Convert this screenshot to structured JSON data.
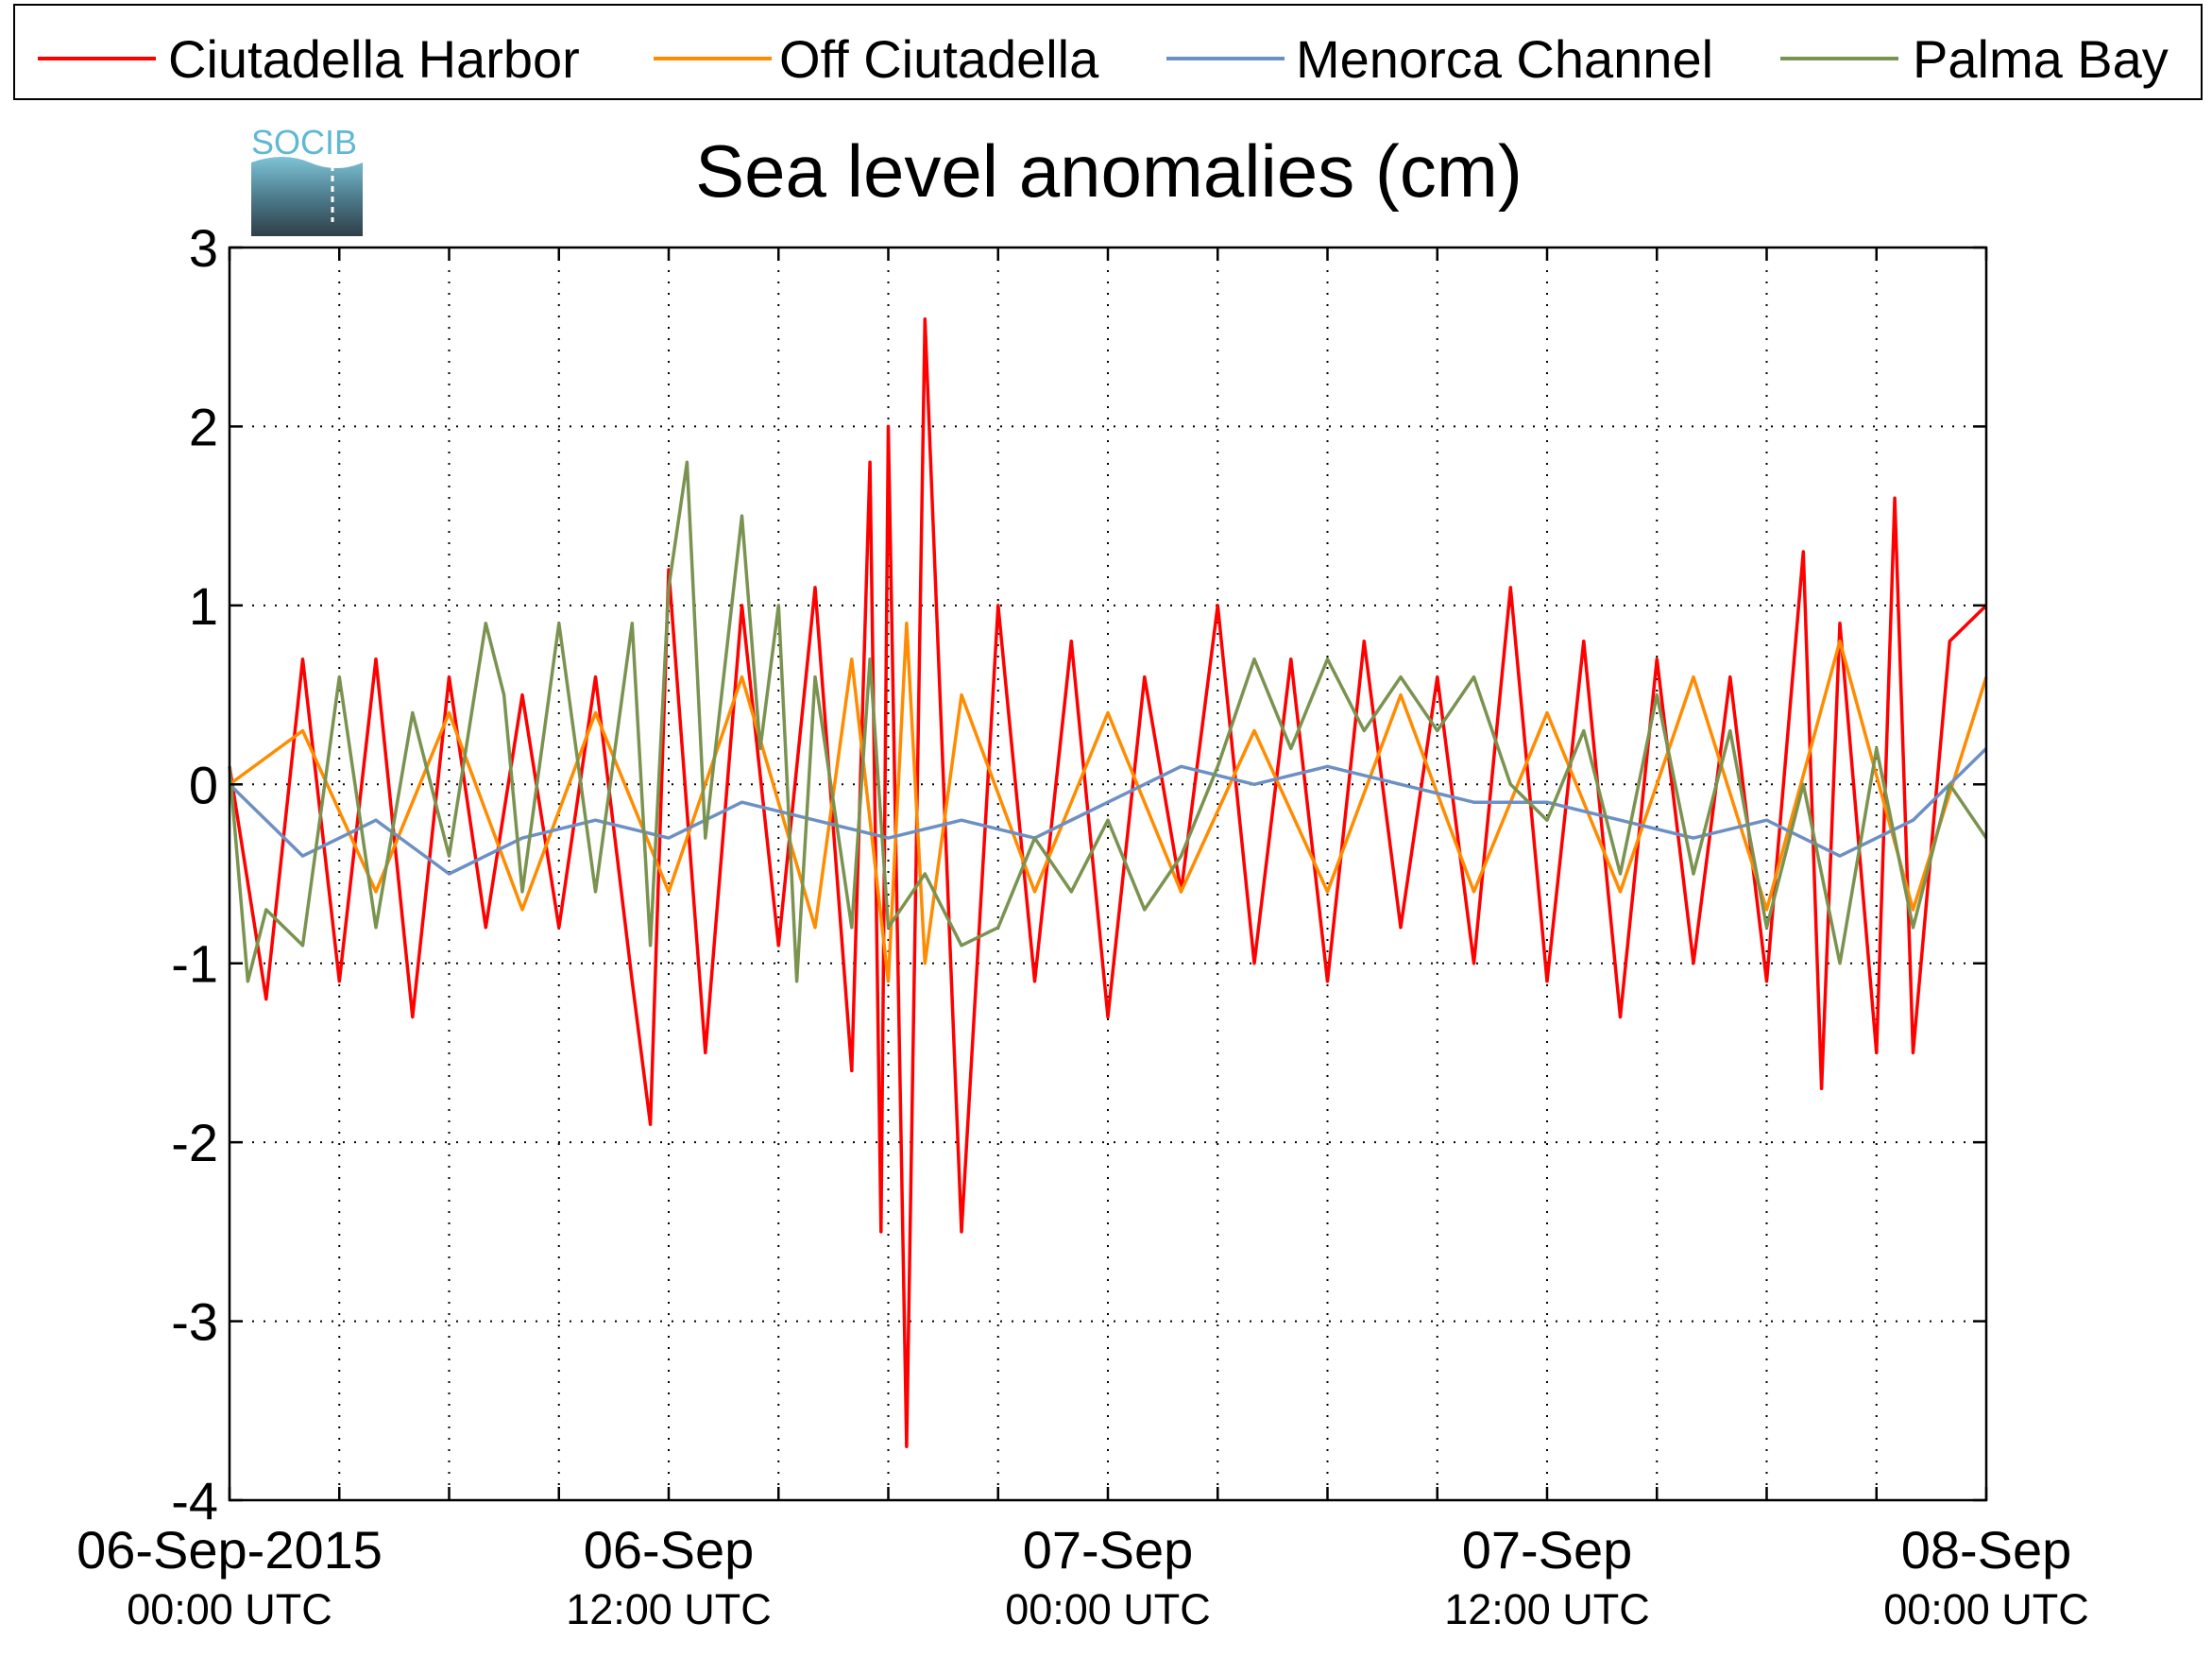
{
  "chart_data": {
    "type": "line",
    "title": "Sea level anomalies (cm)",
    "xlabel": "",
    "ylabel": "",
    "ylim": [
      -4,
      3
    ],
    "y_ticks": [
      3,
      2,
      1,
      0,
      -1,
      -2,
      -3,
      -4
    ],
    "y_tick_labels": [
      "3",
      "2",
      "1",
      "0",
      "-1",
      "-2",
      "-3",
      "-4"
    ],
    "x_range_hours": [
      0,
      48
    ],
    "x_ticks": [
      {
        "hours": 0,
        "date": "06-Sep-2015",
        "time": "00:00 UTC"
      },
      {
        "hours": 12,
        "date": "06-Sep",
        "time": "12:00 UTC"
      },
      {
        "hours": 24,
        "date": "07-Sep",
        "time": "00:00 UTC"
      },
      {
        "hours": 36,
        "date": "07-Sep",
        "time": "12:00 UTC"
      },
      {
        "hours": 48,
        "date": "08-Sep",
        "time": "00:00 UTC"
      }
    ],
    "x_minor_tick_hours": [
      3,
      6,
      9,
      15,
      18,
      21,
      27,
      30,
      33,
      39,
      42,
      45
    ],
    "grid": true,
    "legend_position": "top",
    "series": [
      {
        "name": "Ciutadella Harbor",
        "color": "#ff0000",
        "x": [
          0,
          1,
          2,
          3,
          4,
          5,
          6,
          7,
          8,
          9,
          10,
          11,
          11.5,
          12,
          13,
          14,
          15,
          16,
          17,
          17.5,
          17.8,
          18,
          18.5,
          19,
          20,
          21,
          22,
          23,
          24,
          25,
          26,
          27,
          28,
          29,
          30,
          31,
          32,
          33,
          34,
          35,
          36,
          37,
          38,
          39,
          40,
          41,
          42,
          43,
          43.5,
          44,
          45,
          45.5,
          46,
          47,
          48
        ],
        "y": [
          0.1,
          -1.2,
          0.7,
          -1.1,
          0.7,
          -1.3,
          0.6,
          -0.8,
          0.5,
          -0.8,
          0.6,
          -1.1,
          -1.9,
          1.2,
          -1.5,
          1.0,
          -0.9,
          1.1,
          -1.6,
          1.8,
          -2.5,
          2.0,
          -3.7,
          2.6,
          -2.5,
          1.0,
          -1.1,
          0.8,
          -1.3,
          0.6,
          -0.6,
          1.0,
          -1.0,
          0.7,
          -1.1,
          0.8,
          -0.8,
          0.6,
          -1.0,
          1.1,
          -1.1,
          0.8,
          -1.3,
          0.7,
          -1.0,
          0.6,
          -1.1,
          1.3,
          -1.7,
          0.9,
          -1.5,
          1.6,
          -1.5,
          0.8,
          1.0
        ]
      },
      {
        "name": "Off Ciutadella",
        "color": "#ff8c00",
        "x": [
          0,
          2,
          4,
          6,
          8,
          10,
          12,
          14,
          16,
          17,
          18,
          18.5,
          19,
          20,
          22,
          24,
          26,
          28,
          30,
          32,
          34,
          36,
          38,
          40,
          42,
          44,
          46,
          48
        ],
        "y": [
          0.0,
          0.3,
          -0.6,
          0.4,
          -0.7,
          0.4,
          -0.6,
          0.6,
          -0.8,
          0.7,
          -1.1,
          0.9,
          -1.0,
          0.5,
          -0.6,
          0.4,
          -0.6,
          0.3,
          -0.6,
          0.5,
          -0.6,
          0.4,
          -0.6,
          0.6,
          -0.7,
          0.8,
          -0.7,
          0.6
        ]
      },
      {
        "name": "Menorca Channel",
        "color": "#6d90c4",
        "x": [
          0,
          2,
          4,
          6,
          8,
          10,
          12,
          14,
          16,
          18,
          20,
          22,
          24,
          26,
          28,
          30,
          32,
          34,
          36,
          38,
          40,
          42,
          44,
          46,
          48
        ],
        "y": [
          0.0,
          -0.4,
          -0.2,
          -0.5,
          -0.3,
          -0.2,
          -0.3,
          -0.1,
          -0.2,
          -0.3,
          -0.2,
          -0.3,
          -0.1,
          0.1,
          0.0,
          0.1,
          0.0,
          -0.1,
          -0.1,
          -0.2,
          -0.3,
          -0.2,
          -0.4,
          -0.2,
          0.2
        ]
      },
      {
        "name": "Palma Bay",
        "color": "#7a9350",
        "x": [
          0,
          0.5,
          1,
          2,
          3,
          4,
          5,
          6,
          7,
          7.5,
          8,
          9,
          10,
          11,
          11.5,
          12,
          12.5,
          13,
          14,
          14.5,
          15,
          15.5,
          16,
          17,
          17.5,
          18,
          19,
          20,
          21,
          22,
          23,
          24,
          25,
          26,
          27,
          28,
          29,
          30,
          31,
          32,
          33,
          34,
          35,
          36,
          37,
          38,
          39,
          40,
          41,
          42,
          43,
          44,
          45,
          46,
          47,
          48
        ],
        "y": [
          0.1,
          -1.1,
          -0.7,
          -0.9,
          0.6,
          -0.8,
          0.4,
          -0.4,
          0.9,
          0.5,
          -0.6,
          0.9,
          -0.6,
          0.9,
          -0.9,
          1.1,
          1.8,
          -0.3,
          1.5,
          0.2,
          1.0,
          -1.1,
          0.6,
          -0.8,
          0.7,
          -0.8,
          -0.5,
          -0.9,
          -0.8,
          -0.3,
          -0.6,
          -0.2,
          -0.7,
          -0.4,
          0.1,
          0.7,
          0.2,
          0.7,
          0.3,
          0.6,
          0.3,
          0.6,
          0.0,
          -0.2,
          0.3,
          -0.5,
          0.5,
          -0.5,
          0.3,
          -0.8,
          0.0,
          -1.0,
          0.2,
          -0.8,
          0.0,
          -0.3
        ]
      }
    ]
  },
  "logo": {
    "text": "SOCIB",
    "color": "#5fb8d4"
  }
}
